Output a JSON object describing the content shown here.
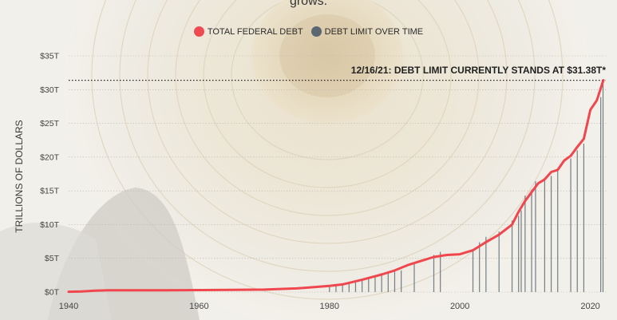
{
  "chart_data": {
    "type": "line",
    "subtitle_tail": "grows.",
    "legend": [
      {
        "label": "TOTAL FEDERAL DEBT",
        "color": "#ee4a52"
      },
      {
        "label": "DEBT LIMIT OVER TIME",
        "color": "#5a6670"
      }
    ],
    "ylabel": "TRILLIONS OF DOLLARS",
    "y_ticks": [
      {
        "value": 0,
        "label": "$0T"
      },
      {
        "value": 5,
        "label": "$5T"
      },
      {
        "value": 10,
        "label": "$10T"
      },
      {
        "value": 15,
        "label": "$15T"
      },
      {
        "value": 20,
        "label": "$20T"
      },
      {
        "value": 25,
        "label": "$25T"
      },
      {
        "value": 30,
        "label": "$30T"
      },
      {
        "value": 35,
        "label": "$35T"
      }
    ],
    "x_ticks": [
      {
        "value": 1940,
        "label": "1940"
      },
      {
        "value": 1960,
        "label": "1960"
      },
      {
        "value": 1980,
        "label": "1980"
      },
      {
        "value": 2000,
        "label": "2000"
      },
      {
        "value": 2020,
        "label": "2020"
      }
    ],
    "xlim": [
      1940,
      2022.5
    ],
    "ylim": [
      0,
      35
    ],
    "annotation": {
      "text": "12/16/21: DEBT LIMIT CURRENTLY STANDS AT $31.38T*",
      "value": 31.38
    },
    "series": [
      {
        "name": "TOTAL FEDERAL DEBT",
        "x": [
          1940,
          1942,
          1944,
          1946,
          1950,
          1955,
          1960,
          1965,
          1970,
          1975,
          1980,
          1982,
          1985,
          1988,
          1990,
          1992,
          1994,
          1996,
          1998,
          2000,
          2002,
          2004,
          2006,
          2008,
          2009,
          2010,
          2011,
          2012,
          2013,
          2014,
          2015,
          2016,
          2017,
          2018,
          2019,
          2020,
          2021,
          2022
        ],
        "values": [
          0.05,
          0.08,
          0.2,
          0.27,
          0.26,
          0.27,
          0.29,
          0.32,
          0.37,
          0.54,
          0.91,
          1.14,
          1.82,
          2.6,
          3.2,
          4.0,
          4.6,
          5.2,
          5.5,
          5.6,
          6.2,
          7.4,
          8.5,
          10.0,
          11.9,
          13.5,
          14.8,
          16.1,
          16.7,
          17.8,
          18.1,
          19.5,
          20.2,
          21.5,
          22.7,
          27.0,
          28.4,
          31.38
        ]
      },
      {
        "name": "DEBT LIMIT OVER TIME",
        "bars": [
          [
            1980,
            0.93
          ],
          [
            1981,
            1.08
          ],
          [
            1982,
            1.14
          ],
          [
            1983,
            1.49
          ],
          [
            1984,
            1.6
          ],
          [
            1985,
            1.9
          ],
          [
            1986,
            2.1
          ],
          [
            1987,
            2.35
          ],
          [
            1988,
            2.8
          ],
          [
            1989,
            2.87
          ],
          [
            1990,
            3.12
          ],
          [
            1991,
            3.2
          ],
          [
            1993,
            4.15
          ],
          [
            1996,
            5.5
          ],
          [
            1997,
            5.95
          ],
          [
            2002,
            6.4
          ],
          [
            2003,
            7.38
          ],
          [
            2004,
            8.18
          ],
          [
            2006,
            8.97
          ],
          [
            2008,
            10.6
          ],
          [
            2009,
            11.3
          ],
          [
            2009.4,
            12.1
          ],
          [
            2010,
            14.3
          ],
          [
            2011,
            15.2
          ],
          [
            2011.6,
            16.4
          ],
          [
            2013,
            16.7
          ],
          [
            2014,
            17.2
          ],
          [
            2015,
            18.1
          ],
          [
            2017,
            19.8
          ],
          [
            2018,
            21.0
          ],
          [
            2019,
            22.0
          ],
          [
            2021.6,
            28.9
          ],
          [
            2021.95,
            31.38
          ]
        ]
      }
    ]
  }
}
